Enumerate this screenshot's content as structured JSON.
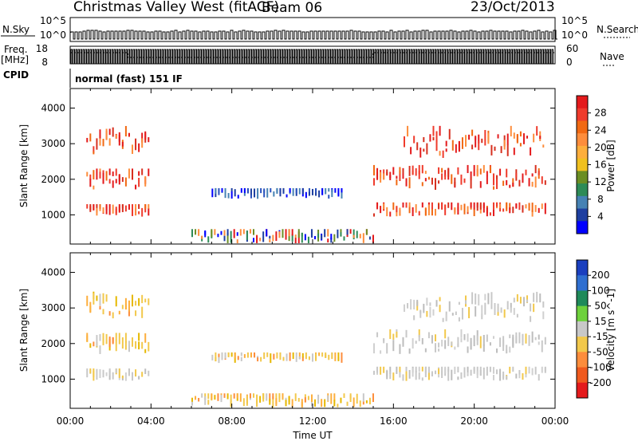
{
  "header": {
    "title": "Christmas Valley West (fitACF)",
    "beam": "Beam 06",
    "date": "23/Oct/2013"
  },
  "panels": {
    "nsky_label": "N.Sky",
    "nsky_ticks": [
      "10^5",
      "10^0"
    ],
    "nsky_right_ticks": [
      "10^5",
      "10^0"
    ],
    "nsearch_label": "N.Search",
    "freq_label": "Freq.",
    "freq_unit": "[MHz]",
    "freq_ticks": [
      "18",
      "8"
    ],
    "nave_ticks": [
      "60",
      "0"
    ],
    "nave_label": "Nave",
    "cpid_label": "CPID",
    "cpid_text": "normal (fast) 151 IF"
  },
  "chart_data": [
    {
      "type": "heatmap",
      "name": "power",
      "ylabel": "Slant Range [km]",
      "yticks": [
        1000,
        2000,
        3000,
        4000
      ],
      "ylim": [
        180,
        4550
      ],
      "xlim": [
        0,
        24
      ],
      "colorbar": {
        "label": "Power [dB]",
        "ticks": [
          "28",
          "24",
          "20",
          "16",
          "12",
          "8",
          "4"
        ],
        "colors": [
          "#e41a1c",
          "#ef3b2c",
          "#f16913",
          "#fd8d3c",
          "#fdae3c",
          "#f0c020",
          "#6b8e23",
          "#2e8b57",
          "#4682b4",
          "#1e3fa0",
          "#0000ff"
        ]
      },
      "bands": [
        {
          "t0": 0.8,
          "t1": 4.0,
          "range": [
            950,
            1300
          ],
          "level": "high"
        },
        {
          "t0": 0.8,
          "t1": 4.0,
          "range": [
            1700,
            2300
          ],
          "level": "high"
        },
        {
          "t0": 0.8,
          "t1": 4.0,
          "range": [
            2700,
            3500
          ],
          "level": "high"
        },
        {
          "t0": 7.0,
          "t1": 13.5,
          "range": [
            1450,
            1750
          ],
          "level": "low"
        },
        {
          "t0": 6.0,
          "t1": 15.0,
          "range": [
            200,
            600
          ],
          "level": "mixed"
        },
        {
          "t0": 15.0,
          "t1": 23.5,
          "range": [
            950,
            1350
          ],
          "level": "high"
        },
        {
          "t0": 15.0,
          "t1": 23.5,
          "range": [
            1700,
            2400
          ],
          "level": "high"
        },
        {
          "t0": 16.5,
          "t1": 23.5,
          "range": [
            2600,
            3500
          ],
          "level": "high"
        }
      ]
    },
    {
      "type": "heatmap",
      "name": "velocity",
      "xlabel": "Time UT",
      "ylabel": "Slant Range [km]",
      "yticks": [
        1000,
        2000,
        3000,
        4000
      ],
      "ylim": [
        180,
        4550
      ],
      "xticks": [
        "00:00",
        "04:00",
        "08:00",
        "12:00",
        "16:00",
        "20:00",
        "00:00"
      ],
      "xlim": [
        0,
        24
      ],
      "colorbar": {
        "label": "Velocity [m s^-1]",
        "ticks": [
          "200",
          "100",
          "50",
          "15",
          "-15",
          "-50",
          "-100",
          "-200"
        ],
        "colors": [
          "#1a3fbf",
          "#2f6fd0",
          "#1f8a5a",
          "#6ed13c",
          "#c8c8c8",
          "#f2c84b",
          "#fd8d3c",
          "#f05a1e",
          "#e41a1c"
        ]
      },
      "bands": [
        {
          "t0": 0.8,
          "t1": 4.0,
          "range": [
            950,
            1300
          ],
          "level": "neutral"
        },
        {
          "t0": 0.8,
          "t1": 4.0,
          "range": [
            1700,
            2300
          ],
          "level": "warm"
        },
        {
          "t0": 0.8,
          "t1": 4.0,
          "range": [
            2700,
            3500
          ],
          "level": "warm"
        },
        {
          "t0": 7.0,
          "t1": 13.5,
          "range": [
            1450,
            1750
          ],
          "level": "warm"
        },
        {
          "t0": 6.0,
          "t1": 15.0,
          "range": [
            200,
            600
          ],
          "level": "warm"
        },
        {
          "t0": 15.0,
          "t1": 23.5,
          "range": [
            950,
            1350
          ],
          "level": "neutral"
        },
        {
          "t0": 15.0,
          "t1": 23.5,
          "range": [
            1700,
            2400
          ],
          "level": "neutral"
        },
        {
          "t0": 16.5,
          "t1": 23.5,
          "range": [
            2600,
            3500
          ],
          "level": "neutral"
        }
      ]
    }
  ]
}
